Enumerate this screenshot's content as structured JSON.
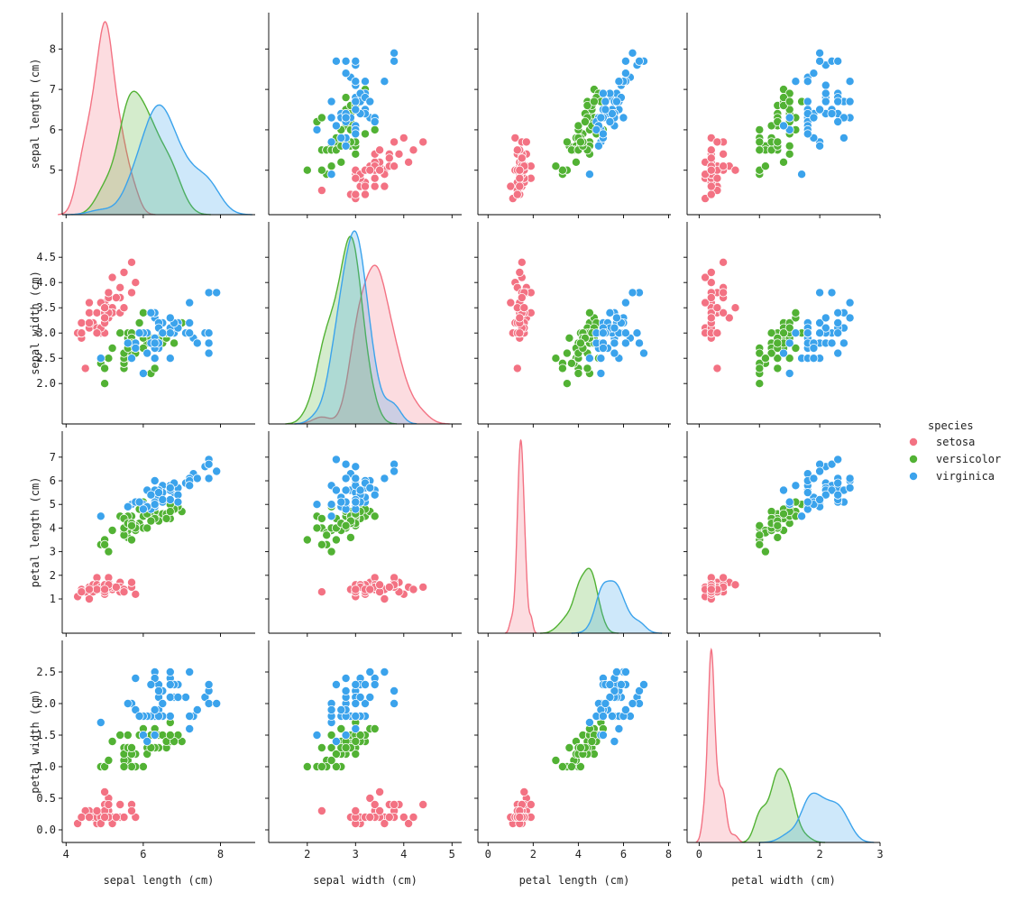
{
  "chart_data": {
    "type": "pairplot",
    "variables": [
      "sepal length (cm)",
      "sepal width (cm)",
      "petal length (cm)",
      "petal width (cm)"
    ],
    "hue": "species",
    "legend": {
      "title": "species",
      "placement": "right",
      "entries": [
        {
          "name": "setosa",
          "color": "#f37283"
        },
        {
          "name": "versicolor",
          "color": "#52b234"
        },
        {
          "name": "virginica",
          "color": "#3ba3ec"
        }
      ]
    },
    "diagonal": "kde",
    "offdiagonal": "scatter",
    "grid": false,
    "axis_ranges": {
      "sepal length (cm)": [
        3.9,
        8.9
      ],
      "sepal width (cm)": [
        1.2,
        5.2
      ],
      "petal length (cm)": [
        -0.45,
        8.1
      ],
      "petal width (cm)": [
        -0.2,
        3.0
      ]
    },
    "ticks": {
      "sepal length (cm)": {
        "row": [
          5,
          6,
          7,
          8
        ],
        "col": [
          4,
          6,
          8
        ]
      },
      "sepal width (cm)": {
        "row": [
          "2.0",
          "2.5",
          "3.0",
          "3.5",
          "4.0",
          "4.5"
        ],
        "col": [
          2,
          3,
          4,
          5
        ]
      },
      "petal length (cm)": {
        "row": [
          1,
          2,
          3,
          4,
          5,
          6,
          7
        ],
        "col": [
          0,
          2,
          4,
          6,
          8
        ]
      },
      "petal width (cm)": {
        "row": [
          "0.0",
          "0.5",
          "1.0",
          "1.5",
          "2.0",
          "2.5"
        ],
        "col": [
          0,
          1,
          2,
          3
        ]
      }
    },
    "series": [
      {
        "name": "setosa",
        "color": "#f37283",
        "columns": [
          "sepal length (cm)",
          "sepal width (cm)",
          "petal length (cm)",
          "petal width (cm)"
        ],
        "points": [
          [
            5.1,
            3.5,
            1.4,
            0.2
          ],
          [
            4.9,
            3.0,
            1.4,
            0.2
          ],
          [
            4.7,
            3.2,
            1.3,
            0.2
          ],
          [
            4.6,
            3.1,
            1.5,
            0.2
          ],
          [
            5.0,
            3.6,
            1.4,
            0.2
          ],
          [
            5.4,
            3.9,
            1.7,
            0.4
          ],
          [
            4.6,
            3.4,
            1.4,
            0.3
          ],
          [
            5.0,
            3.4,
            1.5,
            0.2
          ],
          [
            4.4,
            2.9,
            1.4,
            0.2
          ],
          [
            4.9,
            3.1,
            1.5,
            0.1
          ],
          [
            5.4,
            3.7,
            1.5,
            0.2
          ],
          [
            4.8,
            3.4,
            1.6,
            0.2
          ],
          [
            4.8,
            3.0,
            1.4,
            0.1
          ],
          [
            4.3,
            3.0,
            1.1,
            0.1
          ],
          [
            5.8,
            4.0,
            1.2,
            0.2
          ],
          [
            5.7,
            4.4,
            1.5,
            0.4
          ],
          [
            5.4,
            3.9,
            1.3,
            0.4
          ],
          [
            5.1,
            3.5,
            1.4,
            0.3
          ],
          [
            5.7,
            3.8,
            1.7,
            0.3
          ],
          [
            5.1,
            3.8,
            1.5,
            0.3
          ],
          [
            5.4,
            3.4,
            1.7,
            0.2
          ],
          [
            5.1,
            3.7,
            1.5,
            0.4
          ],
          [
            4.6,
            3.6,
            1.0,
            0.2
          ],
          [
            5.1,
            3.3,
            1.7,
            0.5
          ],
          [
            4.8,
            3.4,
            1.9,
            0.2
          ],
          [
            5.0,
            3.0,
            1.6,
            0.2
          ],
          [
            5.0,
            3.4,
            1.6,
            0.4
          ],
          [
            5.2,
            3.5,
            1.5,
            0.2
          ],
          [
            5.2,
            3.4,
            1.4,
            0.2
          ],
          [
            4.7,
            3.2,
            1.6,
            0.2
          ],
          [
            4.8,
            3.1,
            1.6,
            0.2
          ],
          [
            5.4,
            3.4,
            1.5,
            0.4
          ],
          [
            5.2,
            4.1,
            1.5,
            0.1
          ],
          [
            5.5,
            4.2,
            1.4,
            0.2
          ],
          [
            4.9,
            3.1,
            1.5,
            0.2
          ],
          [
            5.0,
            3.2,
            1.2,
            0.2
          ],
          [
            5.5,
            3.5,
            1.3,
            0.2
          ],
          [
            4.9,
            3.6,
            1.4,
            0.1
          ],
          [
            4.4,
            3.0,
            1.3,
            0.2
          ],
          [
            5.1,
            3.4,
            1.5,
            0.2
          ],
          [
            5.0,
            3.5,
            1.3,
            0.3
          ],
          [
            4.5,
            2.3,
            1.3,
            0.3
          ],
          [
            4.4,
            3.2,
            1.3,
            0.2
          ],
          [
            5.0,
            3.5,
            1.6,
            0.6
          ],
          [
            5.1,
            3.8,
            1.9,
            0.4
          ],
          [
            4.8,
            3.0,
            1.4,
            0.3
          ],
          [
            5.1,
            3.8,
            1.6,
            0.2
          ],
          [
            4.6,
            3.2,
            1.4,
            0.2
          ],
          [
            5.3,
            3.7,
            1.5,
            0.2
          ],
          [
            5.0,
            3.3,
            1.4,
            0.2
          ]
        ]
      },
      {
        "name": "versicolor",
        "color": "#52b234",
        "columns": [
          "sepal length (cm)",
          "sepal width (cm)",
          "petal length (cm)",
          "petal width (cm)"
        ],
        "points": [
          [
            7.0,
            3.2,
            4.7,
            1.4
          ],
          [
            6.4,
            3.2,
            4.5,
            1.5
          ],
          [
            6.9,
            3.1,
            4.9,
            1.5
          ],
          [
            5.5,
            2.3,
            4.0,
            1.3
          ],
          [
            6.5,
            2.8,
            4.6,
            1.5
          ],
          [
            5.7,
            2.8,
            4.5,
            1.3
          ],
          [
            6.3,
            3.3,
            4.7,
            1.6
          ],
          [
            4.9,
            2.4,
            3.3,
            1.0
          ],
          [
            6.6,
            2.9,
            4.6,
            1.3
          ],
          [
            5.2,
            2.7,
            3.9,
            1.4
          ],
          [
            5.0,
            2.0,
            3.5,
            1.0
          ],
          [
            5.9,
            3.0,
            4.2,
            1.5
          ],
          [
            6.0,
            2.2,
            4.0,
            1.0
          ],
          [
            6.1,
            2.9,
            4.7,
            1.4
          ],
          [
            5.6,
            2.9,
            3.6,
            1.3
          ],
          [
            6.7,
            3.1,
            4.4,
            1.4
          ],
          [
            5.6,
            3.0,
            4.5,
            1.5
          ],
          [
            5.8,
            2.7,
            4.1,
            1.0
          ],
          [
            6.2,
            2.2,
            4.5,
            1.5
          ],
          [
            5.6,
            2.5,
            3.9,
            1.1
          ],
          [
            5.9,
            3.2,
            4.8,
            1.8
          ],
          [
            6.1,
            2.8,
            4.0,
            1.3
          ],
          [
            6.3,
            2.5,
            4.9,
            1.5
          ],
          [
            6.1,
            2.8,
            4.7,
            1.2
          ],
          [
            6.4,
            2.9,
            4.3,
            1.3
          ],
          [
            6.6,
            3.0,
            4.4,
            1.4
          ],
          [
            6.8,
            2.8,
            4.8,
            1.4
          ],
          [
            6.7,
            3.0,
            5.0,
            1.7
          ],
          [
            6.0,
            2.9,
            4.5,
            1.5
          ],
          [
            5.7,
            2.6,
            3.5,
            1.0
          ],
          [
            5.5,
            2.4,
            3.8,
            1.1
          ],
          [
            5.5,
            2.4,
            3.7,
            1.0
          ],
          [
            5.8,
            2.7,
            3.9,
            1.2
          ],
          [
            6.0,
            2.7,
            5.1,
            1.6
          ],
          [
            5.4,
            3.0,
            4.5,
            1.5
          ],
          [
            6.0,
            3.4,
            4.5,
            1.6
          ],
          [
            6.7,
            3.1,
            4.7,
            1.5
          ],
          [
            6.3,
            2.3,
            4.4,
            1.3
          ],
          [
            5.6,
            3.0,
            4.1,
            1.3
          ],
          [
            5.5,
            2.5,
            4.0,
            1.3
          ],
          [
            5.5,
            2.6,
            4.4,
            1.2
          ],
          [
            6.1,
            3.0,
            4.6,
            1.4
          ],
          [
            5.8,
            2.6,
            4.0,
            1.2
          ],
          [
            5.0,
            2.3,
            3.3,
            1.0
          ],
          [
            5.6,
            2.7,
            4.2,
            1.3
          ],
          [
            5.7,
            3.0,
            4.2,
            1.2
          ],
          [
            5.7,
            2.9,
            4.2,
            1.3
          ],
          [
            6.2,
            2.9,
            4.3,
            1.3
          ],
          [
            5.1,
            2.5,
            3.0,
            1.1
          ],
          [
            5.7,
            2.8,
            4.1,
            1.3
          ]
        ]
      },
      {
        "name": "virginica",
        "color": "#3ba3ec",
        "columns": [
          "sepal length (cm)",
          "sepal width (cm)",
          "petal length (cm)",
          "petal width (cm)"
        ],
        "points": [
          [
            6.3,
            3.3,
            6.0,
            2.5
          ],
          [
            5.8,
            2.7,
            5.1,
            1.9
          ],
          [
            7.1,
            3.0,
            5.9,
            2.1
          ],
          [
            6.3,
            2.9,
            5.6,
            1.8
          ],
          [
            6.5,
            3.0,
            5.8,
            2.2
          ],
          [
            7.6,
            3.0,
            6.6,
            2.1
          ],
          [
            4.9,
            2.5,
            4.5,
            1.7
          ],
          [
            7.3,
            2.9,
            6.3,
            1.8
          ],
          [
            6.7,
            2.5,
            5.8,
            1.8
          ],
          [
            7.2,
            3.6,
            6.1,
            2.5
          ],
          [
            6.5,
            3.2,
            5.1,
            2.0
          ],
          [
            6.4,
            2.7,
            5.3,
            1.9
          ],
          [
            6.8,
            3.0,
            5.5,
            2.1
          ],
          [
            5.7,
            2.5,
            5.0,
            2.0
          ],
          [
            5.8,
            2.8,
            5.1,
            2.4
          ],
          [
            6.4,
            3.2,
            5.3,
            2.3
          ],
          [
            6.5,
            3.0,
            5.5,
            1.8
          ],
          [
            7.7,
            3.8,
            6.7,
            2.2
          ],
          [
            7.7,
            2.6,
            6.9,
            2.3
          ],
          [
            6.0,
            2.2,
            5.0,
            1.5
          ],
          [
            6.9,
            3.2,
            5.7,
            2.3
          ],
          [
            5.6,
            2.8,
            4.9,
            2.0
          ],
          [
            7.7,
            2.8,
            6.7,
            2.0
          ],
          [
            6.3,
            2.7,
            4.9,
            1.8
          ],
          [
            6.7,
            3.3,
            5.7,
            2.1
          ],
          [
            7.2,
            3.2,
            6.0,
            1.8
          ],
          [
            6.2,
            2.8,
            4.8,
            1.8
          ],
          [
            6.1,
            3.0,
            4.9,
            1.8
          ],
          [
            6.4,
            2.8,
            5.6,
            2.1
          ],
          [
            7.2,
            3.0,
            5.8,
            1.6
          ],
          [
            7.4,
            2.8,
            6.1,
            1.9
          ],
          [
            7.9,
            3.8,
            6.4,
            2.0
          ],
          [
            6.4,
            2.8,
            5.6,
            2.2
          ],
          [
            6.3,
            2.8,
            5.1,
            1.5
          ],
          [
            6.1,
            2.6,
            5.6,
            1.4
          ],
          [
            7.7,
            3.0,
            6.1,
            2.3
          ],
          [
            6.3,
            3.4,
            5.6,
            2.4
          ],
          [
            6.4,
            3.1,
            5.5,
            1.8
          ],
          [
            6.0,
            3.0,
            4.8,
            1.8
          ],
          [
            6.9,
            3.1,
            5.4,
            2.1
          ],
          [
            6.7,
            3.1,
            5.6,
            2.4
          ],
          [
            6.9,
            3.1,
            5.1,
            2.3
          ],
          [
            5.8,
            2.7,
            5.1,
            1.9
          ],
          [
            6.8,
            3.2,
            5.9,
            2.3
          ],
          [
            6.7,
            3.3,
            5.7,
            2.5
          ],
          [
            6.7,
            3.0,
            5.2,
            2.3
          ],
          [
            6.3,
            2.5,
            5.0,
            1.9
          ],
          [
            6.5,
            3.0,
            5.2,
            2.0
          ],
          [
            6.2,
            3.4,
            5.4,
            2.3
          ],
          [
            5.9,
            3.0,
            5.1,
            1.8
          ]
        ]
      }
    ]
  }
}
